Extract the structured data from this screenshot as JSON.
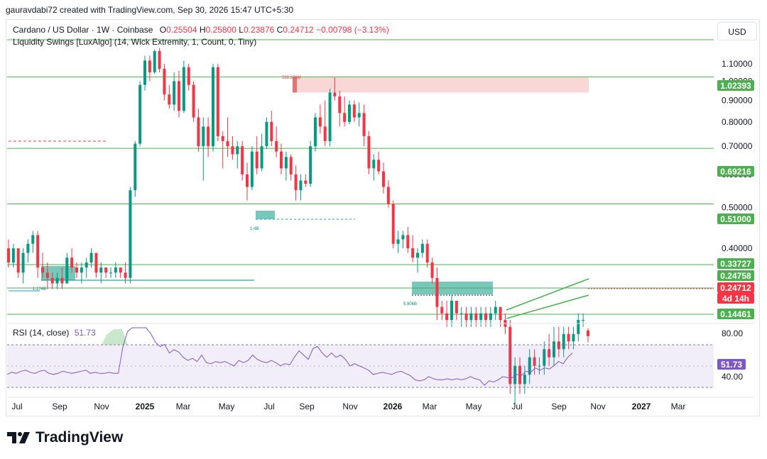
{
  "header": {
    "attribution": "gauravdabi72 created with TradingView.com, Sep 30, 2026 15:47 UTC+5:30"
  },
  "legend": {
    "symbol": "Cardano / US Dollar · 1W · Coinbase",
    "o_label": "O",
    "o_value": "0.25504",
    "h_label": "H",
    "h_value": "0.25800",
    "l_label": "L",
    "l_value": "0.23876",
    "c_label": "C",
    "c_value": "0.24712",
    "change": "−0.00798 (−3.13%)",
    "indicator": "Liquidity Swings [LuxAlgo] (14, Wick Extremity, 1, Count, 0, Tiny)"
  },
  "currency_button": "USD",
  "price_axis": {
    "ticks": [
      "1.10000",
      "1.00000",
      "0.90000",
      "0.80000",
      "0.70000",
      "0.60000",
      "0.50000",
      "0.40000"
    ],
    "tags": [
      {
        "label": "1.02393",
        "color": "#4caf50"
      },
      {
        "label": "0.69216",
        "color": "#4caf50"
      },
      {
        "label": "0.51000",
        "color": "#4caf50"
      },
      {
        "label": "0.33727",
        "color": "#4caf50"
      },
      {
        "label": "0.24758",
        "color": "#4caf50"
      },
      {
        "label": "0.24712",
        "color": "#f23645"
      },
      {
        "label": "4d 14h",
        "color": "#f23645"
      },
      {
        "label": "0.14461",
        "color": "#4caf50"
      }
    ]
  },
  "zone_labels": {
    "resistance_volume": "566.276M",
    "swing_low_1": "1.4B",
    "swing_low_2": "1.174B",
    "swing_low_3": "5.906B"
  },
  "rsi": {
    "legend": "RSI (14, close)",
    "value": "51.73",
    "upper": "80.00",
    "lower": "40.00",
    "tag": "51.73"
  },
  "time_axis": {
    "labels": [
      "Jul",
      "Sep",
      "Nov",
      "2025",
      "Mar",
      "May",
      "Jul",
      "Sep",
      "Nov",
      "2026",
      "Mar",
      "May",
      "Jul",
      "Sep",
      "Nov",
      "2027",
      "Mar"
    ]
  },
  "brand": {
    "name": "TradingView"
  },
  "chart_data": {
    "type": "candlestick",
    "symbol": "ADA/USD",
    "timeframe": "1W",
    "price_range": [
      0.12,
      1.2
    ],
    "horizontal_levels": [
      1.02393,
      0.69216,
      0.51,
      0.33727,
      0.24758,
      0.14461
    ],
    "last_price": 0.24712,
    "colors": {
      "up": "#089981",
      "down": "#f23645",
      "level": "#4caf50",
      "rsi": "#7e57c2"
    },
    "candles": [
      [
        0.4,
        0.42,
        0.36,
        0.37
      ],
      [
        0.37,
        0.41,
        0.36,
        0.4
      ],
      [
        0.4,
        0.4,
        0.34,
        0.35
      ],
      [
        0.35,
        0.4,
        0.33,
        0.39
      ],
      [
        0.39,
        0.42,
        0.37,
        0.41
      ],
      [
        0.41,
        0.44,
        0.39,
        0.43
      ],
      [
        0.43,
        0.44,
        0.34,
        0.36
      ],
      [
        0.36,
        0.39,
        0.34,
        0.35
      ],
      [
        0.35,
        0.37,
        0.32,
        0.34
      ],
      [
        0.34,
        0.35,
        0.32,
        0.33
      ],
      [
        0.33,
        0.35,
        0.32,
        0.34
      ],
      [
        0.34,
        0.36,
        0.32,
        0.33
      ],
      [
        0.33,
        0.39,
        0.33,
        0.38
      ],
      [
        0.38,
        0.4,
        0.35,
        0.36
      ],
      [
        0.36,
        0.37,
        0.34,
        0.35
      ],
      [
        0.35,
        0.37,
        0.33,
        0.36
      ],
      [
        0.36,
        0.38,
        0.34,
        0.37
      ],
      [
        0.37,
        0.4,
        0.36,
        0.39
      ],
      [
        0.39,
        0.39,
        0.34,
        0.35
      ],
      [
        0.35,
        0.37,
        0.33,
        0.36
      ],
      [
        0.36,
        0.36,
        0.34,
        0.35
      ],
      [
        0.35,
        0.36,
        0.34,
        0.35
      ],
      [
        0.35,
        0.37,
        0.34,
        0.36
      ],
      [
        0.36,
        0.36,
        0.34,
        0.35
      ],
      [
        0.35,
        0.37,
        0.33,
        0.34
      ],
      [
        0.34,
        0.56,
        0.33,
        0.55
      ],
      [
        0.55,
        0.72,
        0.53,
        0.71
      ],
      [
        0.71,
        1.0,
        0.7,
        0.98
      ],
      [
        0.98,
        1.15,
        0.95,
        1.12
      ],
      [
        1.12,
        1.15,
        1.0,
        1.05
      ],
      [
        1.05,
        1.19,
        1.04,
        1.18
      ],
      [
        1.18,
        1.2,
        1.05,
        1.07
      ],
      [
        1.07,
        1.1,
        0.9,
        0.93
      ],
      [
        0.93,
        0.98,
        0.86,
        0.88
      ],
      [
        0.88,
        1.05,
        0.85,
        1.0
      ],
      [
        1.0,
        1.06,
        0.82,
        0.85
      ],
      [
        0.85,
        1.12,
        0.84,
        1.08
      ],
      [
        1.08,
        1.1,
        0.95,
        0.98
      ],
      [
        0.98,
        1.0,
        0.8,
        0.82
      ],
      [
        0.82,
        0.86,
        0.68,
        0.7
      ],
      [
        0.7,
        0.82,
        0.58,
        0.78
      ],
      [
        0.78,
        0.82,
        0.66,
        0.7
      ],
      [
        0.7,
        1.1,
        0.68,
        1.08
      ],
      [
        1.08,
        1.1,
        0.72,
        0.74
      ],
      [
        0.74,
        0.76,
        0.62,
        0.72
      ],
      [
        0.72,
        0.82,
        0.66,
        0.7
      ],
      [
        0.7,
        0.74,
        0.65,
        0.67
      ],
      [
        0.67,
        0.72,
        0.62,
        0.7
      ],
      [
        0.7,
        0.72,
        0.58,
        0.6
      ],
      [
        0.6,
        0.64,
        0.52,
        0.56
      ],
      [
        0.56,
        0.7,
        0.55,
        0.68
      ],
      [
        0.68,
        0.74,
        0.6,
        0.62
      ],
      [
        0.62,
        0.75,
        0.61,
        0.7
      ],
      [
        0.7,
        0.82,
        0.69,
        0.8
      ],
      [
        0.8,
        0.85,
        0.7,
        0.72
      ],
      [
        0.72,
        0.78,
        0.66,
        0.68
      ],
      [
        0.68,
        0.71,
        0.6,
        0.62
      ],
      [
        0.62,
        0.68,
        0.58,
        0.66
      ],
      [
        0.66,
        0.67,
        0.58,
        0.6
      ],
      [
        0.6,
        0.63,
        0.52,
        0.55
      ],
      [
        0.55,
        0.6,
        0.52,
        0.58
      ],
      [
        0.58,
        0.6,
        0.56,
        0.57
      ],
      [
        0.57,
        0.72,
        0.56,
        0.7
      ],
      [
        0.7,
        0.84,
        0.68,
        0.82
      ],
      [
        0.82,
        0.88,
        0.75,
        0.78
      ],
      [
        0.78,
        0.9,
        0.7,
        0.72
      ],
      [
        0.72,
        0.96,
        0.7,
        0.94
      ],
      [
        0.94,
        1.02,
        0.9,
        0.92
      ],
      [
        0.92,
        0.95,
        0.78,
        0.84
      ],
      [
        0.84,
        0.92,
        0.78,
        0.8
      ],
      [
        0.8,
        0.9,
        0.79,
        0.88
      ],
      [
        0.88,
        0.9,
        0.8,
        0.82
      ],
      [
        0.82,
        0.89,
        0.78,
        0.84
      ],
      [
        0.84,
        0.88,
        0.7,
        0.74
      ],
      [
        0.74,
        0.76,
        0.6,
        0.62
      ],
      [
        0.62,
        0.67,
        0.58,
        0.65
      ],
      [
        0.65,
        0.68,
        0.6,
        0.61
      ],
      [
        0.61,
        0.64,
        0.54,
        0.56
      ],
      [
        0.56,
        0.58,
        0.5,
        0.51
      ],
      [
        0.51,
        0.52,
        0.4,
        0.41
      ],
      [
        0.41,
        0.44,
        0.39,
        0.42
      ],
      [
        0.42,
        0.44,
        0.4,
        0.43
      ],
      [
        0.43,
        0.45,
        0.39,
        0.4
      ],
      [
        0.4,
        0.43,
        0.37,
        0.38
      ],
      [
        0.38,
        0.4,
        0.35,
        0.39
      ],
      [
        0.39,
        0.42,
        0.38,
        0.41
      ],
      [
        0.41,
        0.42,
        0.36,
        0.37
      ],
      [
        0.37,
        0.38,
        0.33,
        0.34
      ],
      [
        0.34,
        0.36,
        0.27,
        0.29
      ],
      [
        0.29,
        0.3,
        0.27,
        0.28
      ],
      [
        0.28,
        0.3,
        0.26,
        0.27
      ],
      [
        0.27,
        0.31,
        0.26,
        0.3
      ],
      [
        0.3,
        0.3,
        0.27,
        0.28
      ],
      [
        0.28,
        0.29,
        0.26,
        0.28
      ],
      [
        0.28,
        0.29,
        0.26,
        0.27
      ],
      [
        0.27,
        0.29,
        0.26,
        0.28
      ],
      [
        0.28,
        0.29,
        0.26,
        0.27
      ],
      [
        0.27,
        0.29,
        0.26,
        0.28
      ],
      [
        0.28,
        0.29,
        0.26,
        0.27
      ],
      [
        0.27,
        0.29,
        0.26,
        0.28
      ],
      [
        0.28,
        0.3,
        0.27,
        0.29
      ],
      [
        0.29,
        0.29,
        0.26,
        0.27
      ],
      [
        0.27,
        0.28,
        0.25,
        0.26
      ],
      [
        0.26,
        0.27,
        0.18,
        0.19
      ],
      [
        0.19,
        0.22,
        0.17,
        0.21
      ],
      [
        0.21,
        0.22,
        0.18,
        0.19
      ],
      [
        0.19,
        0.21,
        0.18,
        0.2
      ],
      [
        0.2,
        0.23,
        0.19,
        0.22
      ],
      [
        0.22,
        0.23,
        0.2,
        0.21
      ],
      [
        0.21,
        0.22,
        0.2,
        0.21
      ],
      [
        0.21,
        0.24,
        0.2,
        0.23
      ],
      [
        0.23,
        0.25,
        0.21,
        0.22
      ],
      [
        0.22,
        0.26,
        0.21,
        0.24
      ],
      [
        0.24,
        0.26,
        0.22,
        0.23
      ],
      [
        0.23,
        0.26,
        0.22,
        0.25
      ],
      [
        0.25,
        0.26,
        0.23,
        0.24
      ],
      [
        0.24,
        0.26,
        0.23,
        0.25
      ],
      [
        0.25,
        0.28,
        0.24,
        0.27
      ],
      [
        0.27,
        0.28,
        0.26,
        0.27
      ],
      [
        0.255,
        0.258,
        0.2388,
        0.2471
      ]
    ],
    "channel": {
      "upper": [
        [
          0.24,
          0.302
        ]
      ],
      "lower": [
        [
          0.15,
          0.22
        ]
      ]
    },
    "rsi_values": [
      32,
      34,
      33,
      35,
      36,
      34,
      33,
      35,
      36,
      33,
      32,
      33,
      35,
      34,
      33,
      34,
      35,
      36,
      33,
      34,
      33,
      33,
      34,
      33,
      33,
      58,
      72,
      80,
      83,
      80,
      78,
      70,
      62,
      58,
      60,
      52,
      55,
      53,
      48,
      45,
      47,
      44,
      50,
      43,
      42,
      44,
      43,
      44,
      42,
      40,
      45,
      43,
      45,
      50,
      46,
      44,
      43,
      45,
      43,
      40,
      42,
      41,
      48,
      54,
      50,
      46,
      56,
      58,
      52,
      48,
      52,
      48,
      50,
      46,
      40,
      42,
      40,
      38,
      36,
      32,
      33,
      34,
      33,
      32,
      34,
      35,
      33,
      31,
      27,
      26,
      27,
      30,
      28,
      27,
      27,
      28,
      27,
      28,
      27,
      28,
      30,
      28,
      27,
      22,
      26,
      25,
      27,
      30,
      29,
      29,
      32,
      31,
      35,
      34,
      38,
      36,
      38,
      37,
      40,
      44,
      42,
      48,
      52
    ]
  }
}
